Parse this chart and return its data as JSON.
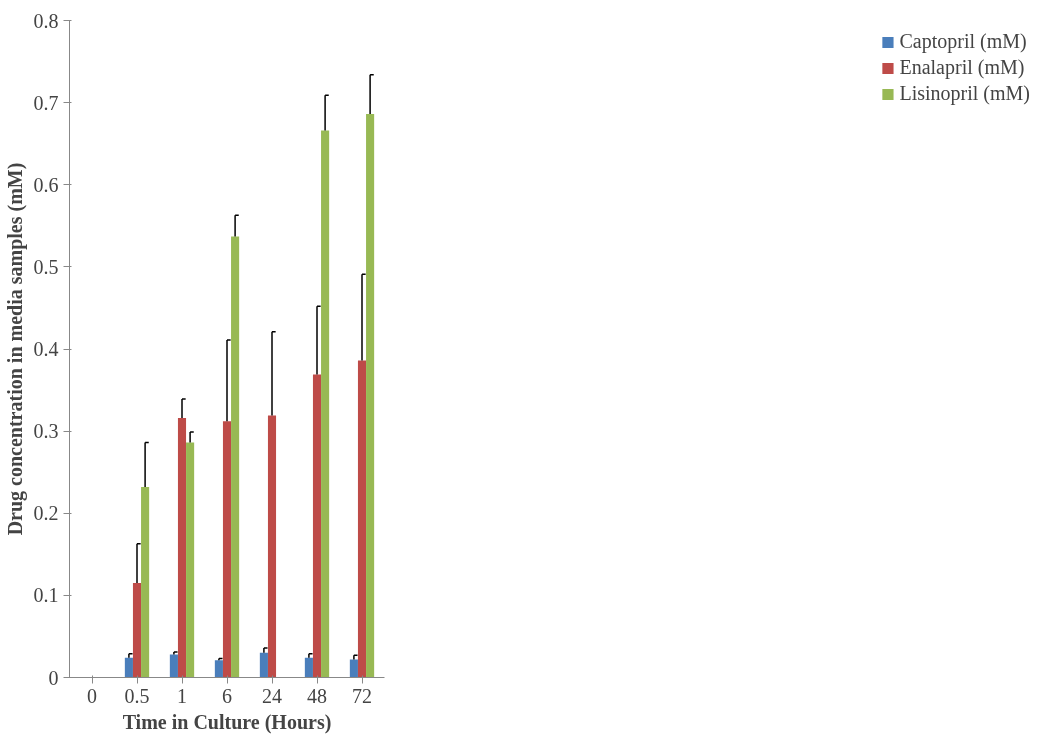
{
  "chart_data": {
    "type": "bar",
    "xlabel": "Time in Culture (Hours)",
    "ylabel": "Drug concentration in media samples (mM)",
    "categories": [
      "0",
      "0.5",
      "1",
      "6",
      "24",
      "48",
      "72"
    ],
    "series": [
      {
        "name": "Captopril (mM)",
        "color": "#4a7ebb",
        "values": [
          0,
          0.024,
          0.028,
          0.021,
          0.03,
          0.024,
          0.022
        ],
        "errors": [
          null,
          [
            0.024,
            0.029
          ],
          [
            0.028,
            0.031
          ],
          [
            0.021,
            0.023
          ],
          [
            0.03,
            0.036
          ],
          [
            0.024,
            0.029
          ],
          [
            0.022,
            0.027
          ]
        ]
      },
      {
        "name": "Enalapril (mM)",
        "color": "#be4b48",
        "values": [
          0,
          0.115,
          0.316,
          0.312,
          0.319,
          0.369,
          0.386
        ],
        "errors": [
          null,
          [
            0.115,
            0.163
          ],
          [
            0.316,
            0.339
          ],
          [
            0.312,
            0.411
          ],
          [
            0.319,
            0.421
          ],
          [
            0.369,
            0.452
          ],
          [
            0.386,
            0.491
          ]
        ]
      },
      {
        "name": "Lisinopril (mM)",
        "color": "#98b954",
        "values": [
          0,
          0.232,
          0.286,
          0.537,
          null,
          0.666,
          0.686
        ],
        "errors": [
          null,
          [
            0.232,
            0.286
          ],
          [
            0.286,
            0.299
          ],
          [
            0.537,
            0.563
          ],
          null,
          [
            0.666,
            0.709
          ],
          [
            0.686,
            0.734
          ]
        ]
      }
    ],
    "ylim": [
      0,
      0.8
    ],
    "yticks": [
      0,
      0.1,
      0.2,
      0.3,
      0.4,
      0.5,
      0.6,
      0.7,
      0.8
    ],
    "grid": false,
    "legend": "right"
  }
}
